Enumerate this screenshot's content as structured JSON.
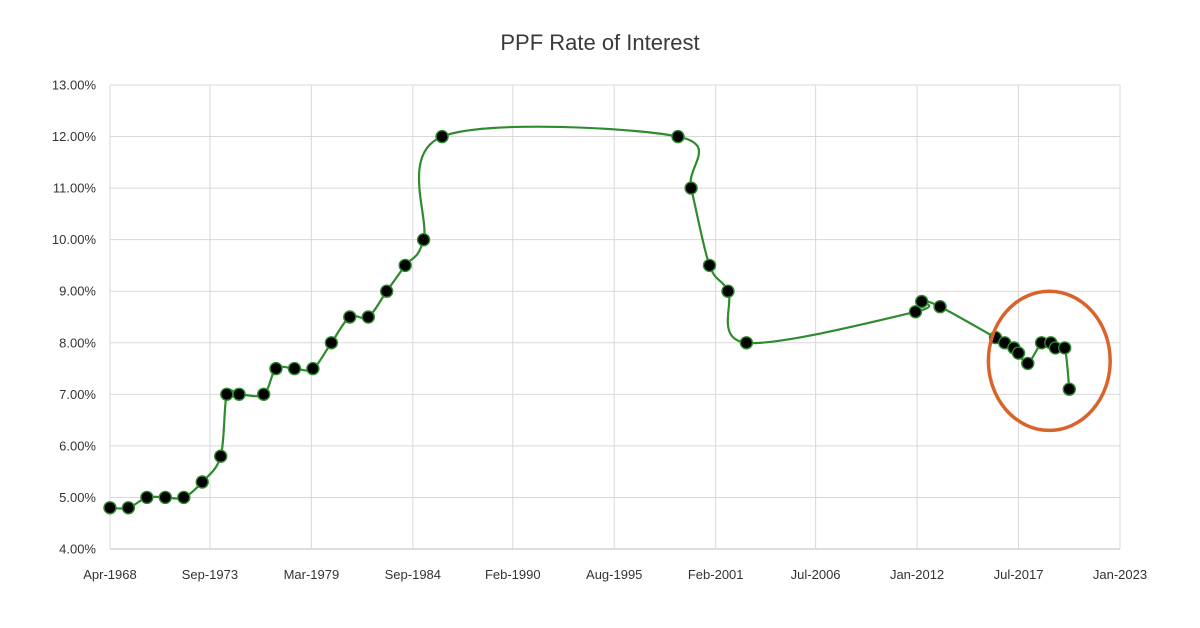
{
  "chart_data": {
    "type": "line",
    "title": "PPF Rate of Interest",
    "xlabel": "",
    "ylabel": "",
    "x_tick_labels": [
      "Apr-1968",
      "Sep-1973",
      "Mar-1979",
      "Sep-1984",
      "Feb-1990",
      "Aug-1995",
      "Feb-2001",
      "Jul-2006",
      "Jan-2012",
      "Jul-2017",
      "Jan-2023"
    ],
    "x_ticks": [
      "1968-04-01",
      "1973-09-01",
      "1979-03-01",
      "1984-09-01",
      "1990-02-01",
      "1995-08-01",
      "2001-02-01",
      "2006-07-01",
      "2012-01-01",
      "2017-07-01",
      "2023-01-01"
    ],
    "xlim": [
      "1968-04-01",
      "2023-01-01"
    ],
    "ylim": [
      4,
      13
    ],
    "y_ticks": [
      4,
      5,
      6,
      7,
      8,
      9,
      10,
      11,
      12,
      13
    ],
    "y_tick_labels": [
      "4.00%",
      "5.00%",
      "6.00%",
      "7.00%",
      "8.00%",
      "9.00%",
      "10.00%",
      "11.00%",
      "12.00%",
      "13.00%"
    ],
    "grid": true,
    "series": [
      {
        "color": "#2e8b2e",
        "marker_color": "#000000",
        "points": [
          {
            "x": "1968-04-01",
            "y": 4.8
          },
          {
            "x": "1969-04-01",
            "y": 4.8
          },
          {
            "x": "1970-04-01",
            "y": 5.0
          },
          {
            "x": "1971-04-01",
            "y": 5.0
          },
          {
            "x": "1972-04-01",
            "y": 5.0
          },
          {
            "x": "1973-04-01",
            "y": 5.3
          },
          {
            "x": "1974-04-01",
            "y": 5.8
          },
          {
            "x": "1974-08-01",
            "y": 7.0
          },
          {
            "x": "1975-04-01",
            "y": 7.0
          },
          {
            "x": "1976-08-01",
            "y": 7.0
          },
          {
            "x": "1977-04-01",
            "y": 7.5
          },
          {
            "x": "1978-04-01",
            "y": 7.5
          },
          {
            "x": "1979-04-01",
            "y": 7.5
          },
          {
            "x": "1980-04-01",
            "y": 8.0
          },
          {
            "x": "1981-04-01",
            "y": 8.5
          },
          {
            "x": "1982-04-01",
            "y": 8.5
          },
          {
            "x": "1983-04-01",
            "y": 9.0
          },
          {
            "x": "1984-04-01",
            "y": 9.5
          },
          {
            "x": "1985-04-01",
            "y": 10.0
          },
          {
            "x": "1986-04-01",
            "y": 12.0
          },
          {
            "x": "1999-01-15",
            "y": 12.0
          },
          {
            "x": "1999-10-01",
            "y": 11.0
          },
          {
            "x": "2000-10-01",
            "y": 9.5
          },
          {
            "x": "2001-10-01",
            "y": 9.0
          },
          {
            "x": "2002-10-01",
            "y": 8.0
          },
          {
            "x": "2011-12-01",
            "y": 8.6
          },
          {
            "x": "2012-04-01",
            "y": 8.8
          },
          {
            "x": "2013-04-01",
            "y": 8.7
          },
          {
            "x": "2016-04-01",
            "y": 8.1
          },
          {
            "x": "2016-10-01",
            "y": 8.0
          },
          {
            "x": "2017-04-01",
            "y": 7.9
          },
          {
            "x": "2017-07-01",
            "y": 7.8
          },
          {
            "x": "2018-01-01",
            "y": 7.6
          },
          {
            "x": "2018-10-01",
            "y": 8.0
          },
          {
            "x": "2019-04-01",
            "y": 8.0
          },
          {
            "x": "2019-07-01",
            "y": 7.9
          },
          {
            "x": "2020-01-01",
            "y": 7.9
          },
          {
            "x": "2020-04-01",
            "y": 7.1
          }
        ]
      }
    ],
    "annotations": [
      {
        "type": "ellipse",
        "color": "#d9632b",
        "center": {
          "x": "2019-03-01",
          "y": 7.65
        },
        "radius_x_years": 3.3,
        "radius_y": 1.35
      }
    ]
  }
}
